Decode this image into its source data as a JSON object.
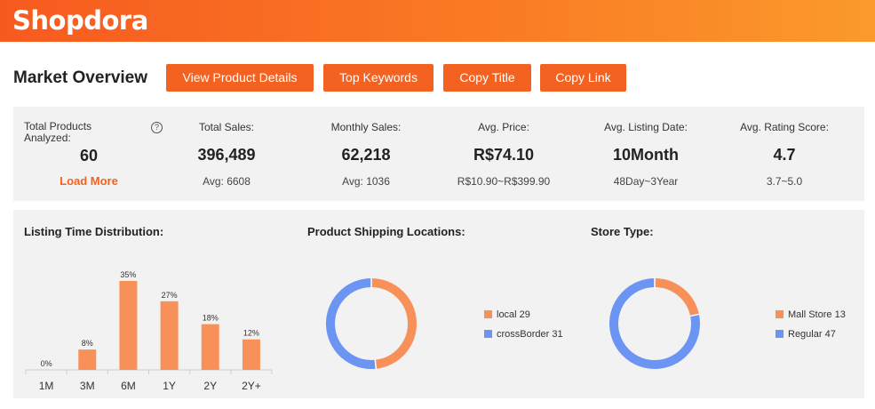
{
  "app": {
    "logo": "Shopdora"
  },
  "header": {
    "title": "Market Overview",
    "buttons": {
      "view_details": "View Product Details",
      "top_keywords": "Top Keywords",
      "copy_title": "Copy Title",
      "copy_link": "Copy Link"
    }
  },
  "stats": {
    "total_products": {
      "label": "Total Products Analyzed:",
      "value": "60",
      "action": "Load More",
      "help_icon": "?"
    },
    "total_sales": {
      "label": "Total Sales:",
      "value": "396,489",
      "sub": "Avg: 6608"
    },
    "monthly_sales": {
      "label": "Monthly Sales:",
      "value": "62,218",
      "sub": "Avg: 1036"
    },
    "avg_price": {
      "label": "Avg. Price:",
      "value": "R$74.10",
      "sub": "R$10.90~R$399.90"
    },
    "avg_listing": {
      "label": "Avg. Listing Date:",
      "value": "10Month",
      "sub": "48Day~3Year"
    },
    "avg_rating": {
      "label": "Avg. Rating Score:",
      "value": "4.7",
      "sub": "3.7~5.0"
    }
  },
  "panels": {
    "listing_time": {
      "title": "Listing Time Distribution:"
    },
    "shipping": {
      "title": "Product Shipping Locations:",
      "legend": [
        {
          "label": "local 29",
          "color": "#f79159"
        },
        {
          "label": "crossBorder 31",
          "color": "#6b94f3"
        }
      ]
    },
    "store_type": {
      "title": "Store Type:",
      "legend": [
        {
          "label": "Mall Store 13",
          "color": "#f79159"
        },
        {
          "label": "Regular 47",
          "color": "#6b94f3"
        }
      ]
    }
  },
  "chart_data": [
    {
      "type": "bar",
      "title": "Listing Time Distribution:",
      "categories": [
        "1M",
        "3M",
        "6M",
        "1Y",
        "2Y",
        "2Y+"
      ],
      "values": [
        0,
        8,
        35,
        27,
        18,
        12
      ],
      "labels": [
        "0%",
        "8%",
        "35%",
        "27%",
        "18%",
        "12%"
      ],
      "unit": "%",
      "color": "#f79159",
      "ylim": [
        0,
        35
      ]
    },
    {
      "type": "pie",
      "subtype": "donut",
      "title": "Product Shipping Locations:",
      "slices": [
        {
          "name": "local",
          "value": 29,
          "color": "#f79159"
        },
        {
          "name": "crossBorder",
          "value": 31,
          "color": "#6b94f3"
        }
      ]
    },
    {
      "type": "pie",
      "subtype": "donut",
      "title": "Store Type:",
      "slices": [
        {
          "name": "Mall Store",
          "value": 13,
          "color": "#f79159"
        },
        {
          "name": "Regular",
          "value": 47,
          "color": "#6b94f3"
        }
      ]
    }
  ]
}
